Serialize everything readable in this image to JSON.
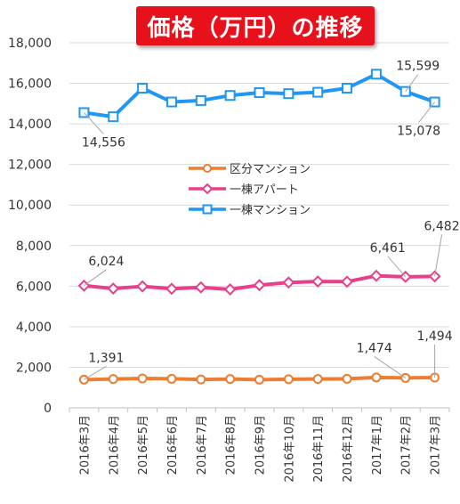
{
  "chart_data": {
    "type": "line",
    "title": "価格（万円）の推移",
    "categories": [
      "2016年3月",
      "2016年4月",
      "2016年5月",
      "2016年6月",
      "2016年7月",
      "2016年8月",
      "2016年9月",
      "2016年10月",
      "2016年11月",
      "2016年12月",
      "2017年1月",
      "2017年2月",
      "2017年3月"
    ],
    "ylim": [
      0,
      18000
    ],
    "yticks": [
      0,
      2000,
      4000,
      6000,
      8000,
      10000,
      12000,
      14000,
      16000,
      18000
    ],
    "ytick_labels": [
      "0",
      "2,000",
      "4,000",
      "6,000",
      "8,000",
      "10,000",
      "12,000",
      "14,000",
      "16,000",
      "18,000"
    ],
    "grid": true,
    "legend_position": "center",
    "series": [
      {
        "name": "区分マンション",
        "color": "#ed7d31",
        "marker": "circle",
        "values": [
          1391,
          1420,
          1450,
          1430,
          1400,
          1420,
          1390,
          1410,
          1420,
          1430,
          1500,
          1474,
          1494
        ]
      },
      {
        "name": "一棟アパート",
        "color": "#e83e8c",
        "marker": "diamond",
        "values": [
          6024,
          5880,
          5990,
          5870,
          5940,
          5840,
          6050,
          6180,
          6230,
          6220,
          6510,
          6461,
          6482
        ]
      },
      {
        "name": "一棟マンション",
        "color": "#2196f3",
        "marker": "square",
        "values": [
          14556,
          14350,
          15760,
          15080,
          15150,
          15400,
          15540,
          15490,
          15560,
          15760,
          16450,
          15599,
          15078
        ]
      }
    ],
    "annotations": [
      {
        "series": 2,
        "index": 0,
        "label": "14,556"
      },
      {
        "series": 2,
        "index": 11,
        "label": "15,599"
      },
      {
        "series": 2,
        "index": 12,
        "label": "15,078"
      },
      {
        "series": 1,
        "index": 0,
        "label": "6,024"
      },
      {
        "series": 1,
        "index": 11,
        "label": "6,461"
      },
      {
        "series": 1,
        "index": 12,
        "label": "6,482"
      },
      {
        "series": 0,
        "index": 0,
        "label": "1,391"
      },
      {
        "series": 0,
        "index": 11,
        "label": "1,474"
      },
      {
        "series": 0,
        "index": 12,
        "label": "1,494"
      }
    ]
  }
}
